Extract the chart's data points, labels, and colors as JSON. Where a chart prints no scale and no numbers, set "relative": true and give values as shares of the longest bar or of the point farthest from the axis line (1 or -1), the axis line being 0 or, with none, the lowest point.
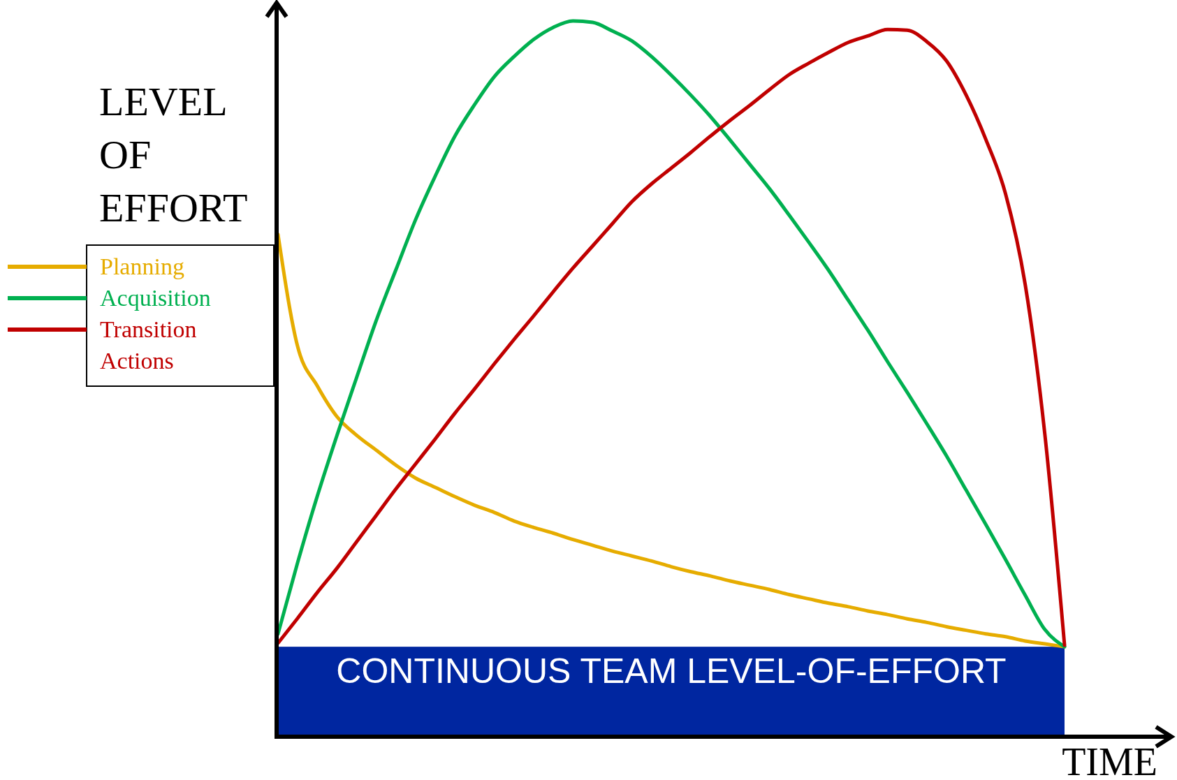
{
  "chart_data": {
    "type": "line",
    "relative": true,
    "xlabel": "TIME",
    "ylabel": "LEVEL OF EFFORT",
    "legend": "left",
    "categories": [
      null,
      null,
      null,
      null,
      null,
      null,
      null,
      null,
      null,
      null,
      null,
      null,
      null,
      null,
      null,
      null,
      null,
      null,
      null,
      null,
      null,
      null,
      null,
      null,
      null,
      null,
      null,
      null,
      null,
      null,
      null,
      null,
      null,
      null,
      null,
      null,
      null,
      null,
      null,
      null,
      null
    ],
    "series": [
      {
        "name": "Planning",
        "color": "#e6ac00",
        "values": [
          0.701,
          0.544,
          0.489,
          0.446,
          0.42,
          0.399,
          0.378,
          0.36,
          0.347,
          0.334,
          0.322,
          0.312,
          0.3,
          0.291,
          0.283,
          0.274,
          0.266,
          0.258,
          0.251,
          0.244,
          0.236,
          0.229,
          0.223,
          0.216,
          0.21,
          0.204,
          0.197,
          0.191,
          0.185,
          0.18,
          0.174,
          0.169,
          0.163,
          0.158,
          0.152,
          0.147,
          0.142,
          0.138,
          0.132,
          0.128,
          0.124
        ]
      },
      {
        "name": "Acquisition",
        "color": "#00b050",
        "values": [
          0.142,
          0.242,
          0.335,
          0.42,
          0.501,
          0.581,
          0.652,
          0.722,
          0.783,
          0.839,
          0.883,
          0.922,
          0.95,
          0.974,
          0.991,
          1,
          0.998,
          0.986,
          0.972,
          0.95,
          0.924,
          0.896,
          0.866,
          0.833,
          0.799,
          0.765,
          0.728,
          0.69,
          0.651,
          0.609,
          0.567,
          0.523,
          0.48,
          0.436,
          0.391,
          0.343,
          0.295,
          0.246,
          0.196,
          0.148,
          0.124
        ]
      },
      {
        "name": "Transition Actions",
        "color": "#c00000",
        "values": [
          0.129,
          0.164,
          0.2,
          0.234,
          0.271,
          0.308,
          0.345,
          0.38,
          0.415,
          0.451,
          0.485,
          0.52,
          0.554,
          0.587,
          0.621,
          0.654,
          0.685,
          0.716,
          0.747,
          0.772,
          0.794,
          0.816,
          0.839,
          0.861,
          0.882,
          0.904,
          0.925,
          0.941,
          0.956,
          0.97,
          0.979,
          0.988,
          0.987,
          0.971,
          0.944,
          0.896,
          0.834,
          0.758,
          0.631,
          0.421,
          0.126
        ]
      }
    ],
    "bands": [
      {
        "axis": "y",
        "from": 0,
        "to": 0.124,
        "label": "CONTINUOUS TEAM LEVEL-OF-EFFORT",
        "color": "#0026a0"
      }
    ]
  }
}
